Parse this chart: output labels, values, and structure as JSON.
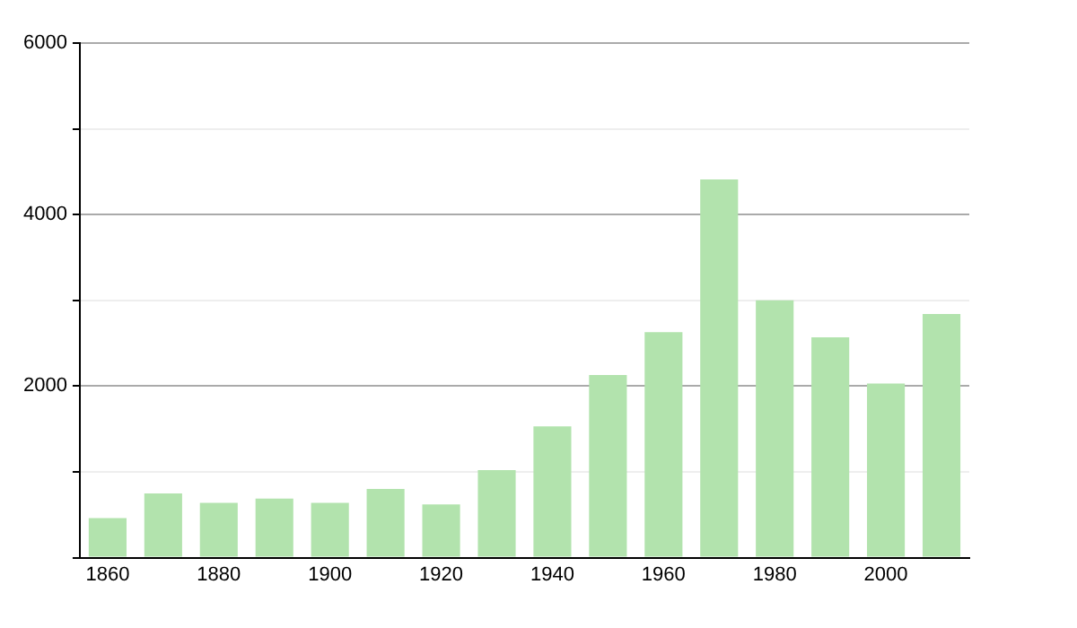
{
  "chart_data": {
    "type": "bar",
    "categories": [
      "1860",
      null,
      "1880",
      null,
      "1900",
      null,
      "1920",
      null,
      "1940",
      null,
      "1960",
      null,
      "1980",
      null,
      "2000",
      null
    ],
    "values": [
      460,
      750,
      640,
      690,
      640,
      800,
      620,
      1020,
      1530,
      2130,
      2630,
      4410,
      3000,
      2570,
      2030,
      2840
    ],
    "color": "#b2e3ad",
    "ylim": [
      0,
      6000
    ],
    "yticks": [
      {
        "value": 0,
        "label": null
      },
      {
        "value": 1000,
        "label": null
      },
      2000,
      {
        "value": 3000,
        "label": null
      },
      4000,
      {
        "value": 5000,
        "label": null
      },
      6000
    ],
    "grid": "y"
  }
}
